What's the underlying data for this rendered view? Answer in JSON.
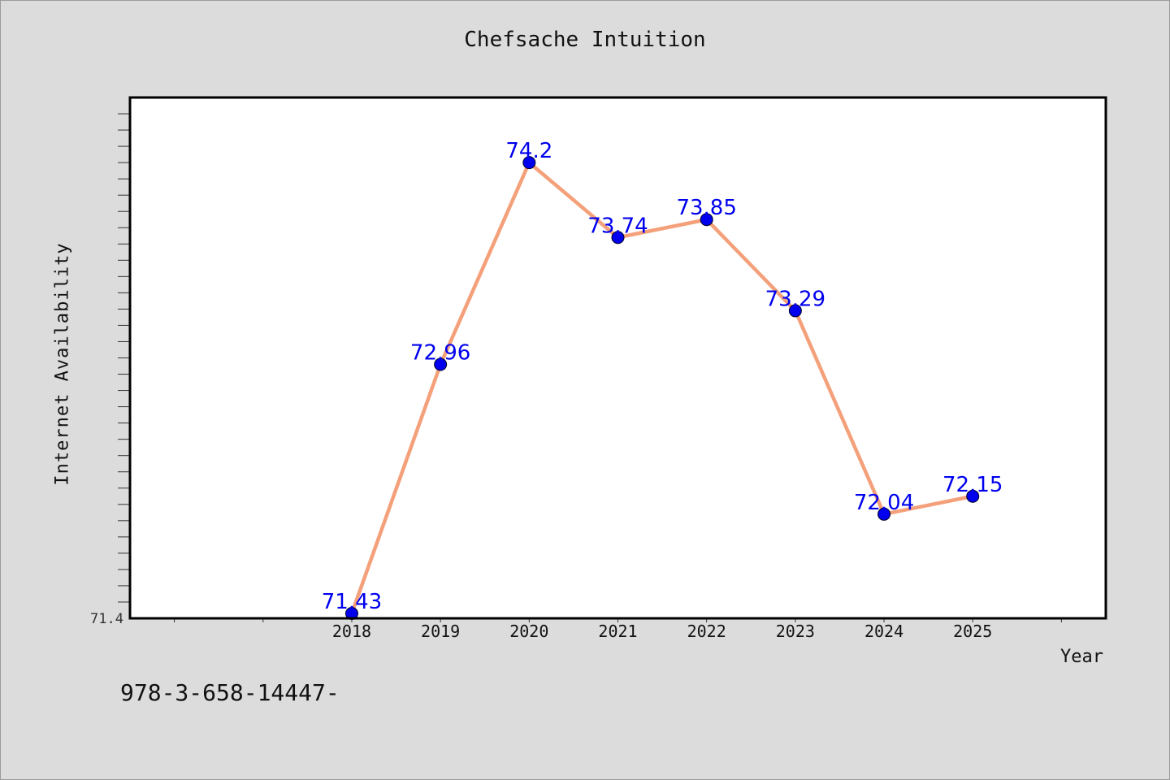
{
  "chart_data": {
    "type": "line",
    "title": "Chefsache Intuition",
    "xlabel": "Year",
    "ylabel": "Internet Availability",
    "categories": [
      "2018",
      "2019",
      "2020",
      "2021",
      "2022",
      "2023",
      "2024",
      "2025"
    ],
    "x": [
      2018,
      2019,
      2020,
      2021,
      2022,
      2023,
      2024,
      2025
    ],
    "xlim": [
      2015.5,
      2026.5
    ],
    "values": [
      71.43,
      72.96,
      74.2,
      73.74,
      73.85,
      73.29,
      72.04,
      72.15
    ],
    "value_labels": [
      "71.43",
      "72.96",
      "74.2",
      "73.74",
      "73.85",
      "73.29",
      "72.04",
      "72.15"
    ],
    "ylim": [
      71.4,
      74.6
    ],
    "y_tick_labels": [
      "71.4"
    ],
    "grid": false,
    "line_color": "#f4a07a",
    "marker_color": "#0000ee",
    "label_color": "#0000ee"
  },
  "footer": {
    "text": "978-3-658-14447-"
  }
}
